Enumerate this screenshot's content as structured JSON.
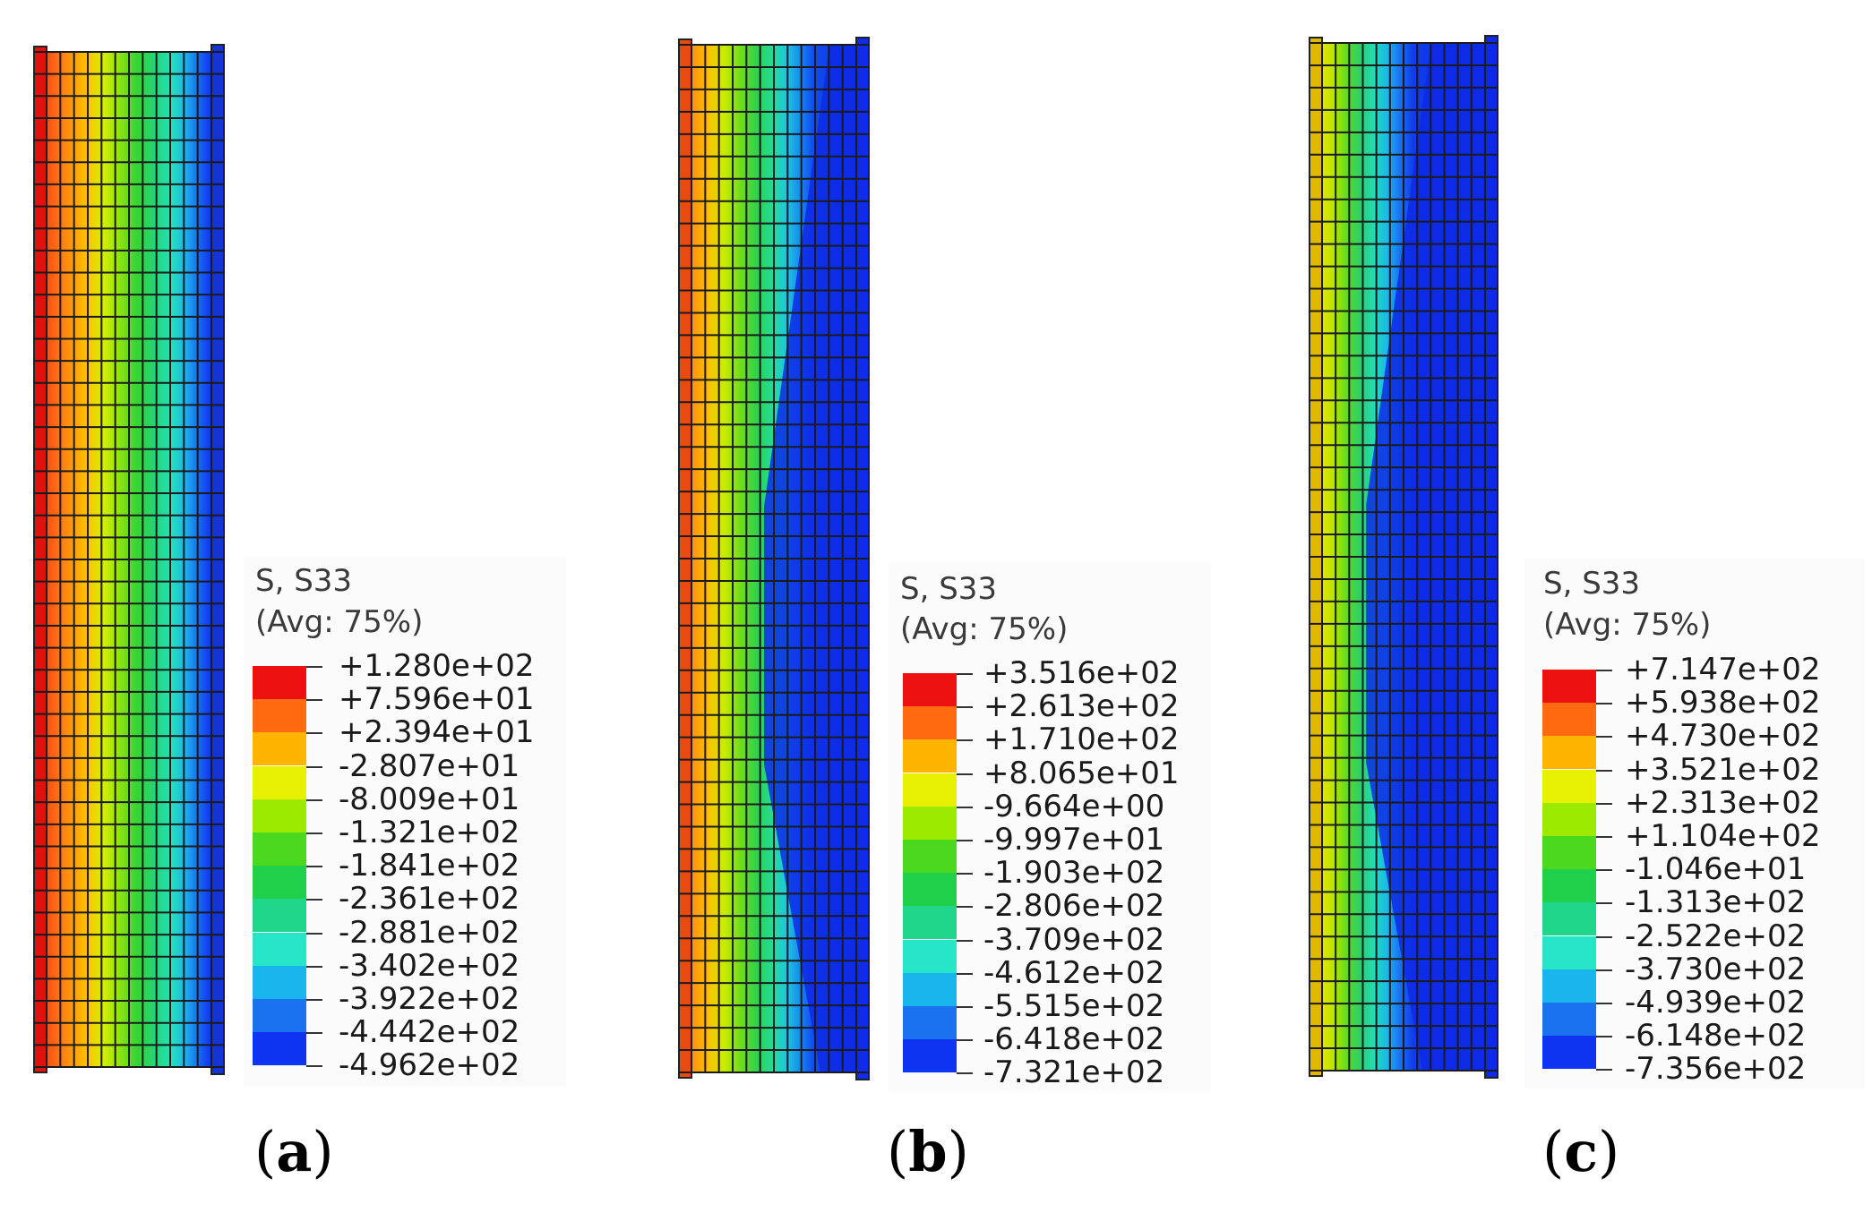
{
  "chart_data": [
    {
      "type": "heatmap",
      "field": "S, S33",
      "averaging": "(Avg: 75%)",
      "caption": "a",
      "legend_values": [
        "+1.280e+02",
        "+7.596e+01",
        "+2.394e+01",
        "-2.807e+01",
        "-8.009e+01",
        "-1.321e+02",
        "-1.841e+02",
        "-2.361e+02",
        "-2.881e+02",
        "-3.402e+02",
        "-3.922e+02",
        "-4.442e+02",
        "-4.962e+02"
      ],
      "colorbar": [
        "#ee1111",
        "#ff6a10",
        "#ffb400",
        "#e6f000",
        "#9bea00",
        "#4cd81e",
        "#1fd04a",
        "#1fd68a",
        "#27e6c8",
        "#19b6ee",
        "#1a72ee",
        "#0e34f2"
      ]
    },
    {
      "type": "heatmap",
      "field": "S, S33",
      "averaging": "(Avg: 75%)",
      "caption": "b",
      "legend_values": [
        "+3.516e+02",
        "+2.613e+02",
        "+1.710e+02",
        "+8.065e+01",
        "-9.664e+00",
        "-9.997e+01",
        "-1.903e+02",
        "-2.806e+02",
        "-3.709e+02",
        "-4.612e+02",
        "-5.515e+02",
        "-6.418e+02",
        "-7.321e+02"
      ],
      "colorbar": [
        "#ee1111",
        "#ff6a10",
        "#ffb400",
        "#e6f000",
        "#9bea00",
        "#4cd81e",
        "#1fd04a",
        "#1fd68a",
        "#27e6c8",
        "#19b6ee",
        "#1a72ee",
        "#0e34f2"
      ]
    },
    {
      "type": "heatmap",
      "field": "S, S33",
      "averaging": "(Avg: 75%)",
      "caption": "c",
      "legend_values": [
        "+7.147e+02",
        "+5.938e+02",
        "+4.730e+02",
        "+3.521e+02",
        "+2.313e+02",
        "+1.104e+02",
        "-1.046e+01",
        "-1.313e+02",
        "-2.522e+02",
        "-3.730e+02",
        "-4.939e+02",
        "-6.148e+02",
        "-7.356e+02"
      ],
      "colorbar": [
        "#ee1111",
        "#ff6a10",
        "#ffb400",
        "#e6f000",
        "#9bea00",
        "#4cd81e",
        "#1fd04a",
        "#1fd68a",
        "#27e6c8",
        "#19b6ee",
        "#1a72ee",
        "#0e34f2"
      ]
    }
  ]
}
